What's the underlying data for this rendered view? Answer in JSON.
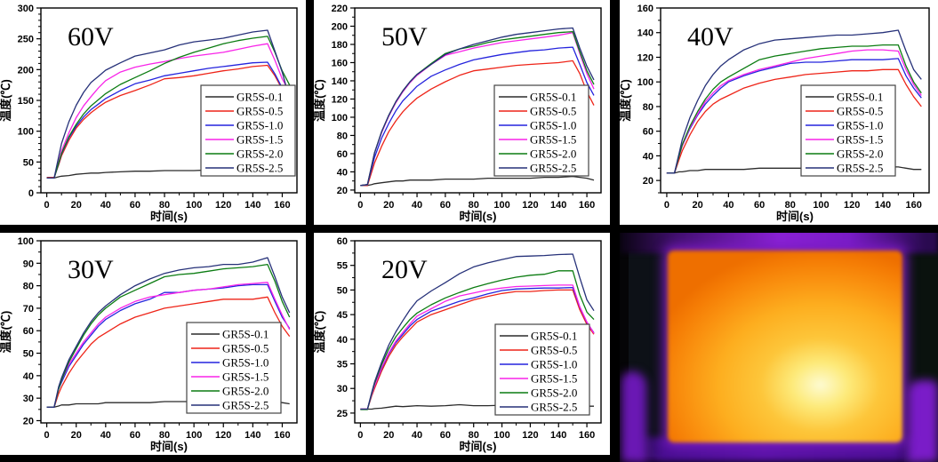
{
  "legend": {
    "labels": [
      "GR5S-0.1",
      "GR5S-0.5",
      "GR5S-1.0",
      "GR5S-1.5",
      "GR5S-2.0",
      "GR5S-2.5"
    ]
  },
  "chart_data": {
    "type": "line",
    "x_label": "时间(s)",
    "y_label": "温度(℃)",
    "legend_position": "right-middle",
    "grid": false,
    "x": [
      0,
      5,
      8,
      10,
      15,
      20,
      25,
      30,
      35,
      40,
      50,
      60,
      70,
      80,
      90,
      100,
      110,
      120,
      130,
      140,
      150,
      155,
      160,
      165
    ],
    "x_ticks": {
      "start": 0,
      "end": 160,
      "step": 20,
      "minor": 10
    },
    "xlim": [
      -4,
      170
    ],
    "series_names": [
      "GR5S-0.1",
      "GR5S-0.5",
      "GR5S-1.0",
      "GR5S-1.5",
      "GR5S-2.0",
      "GR5S-2.5"
    ],
    "series_colors": [
      "#2b2b2b",
      "#ee2418",
      "#2524dd",
      "#f824e8",
      "#0c7c12",
      "#263179"
    ],
    "charts": [
      {
        "title": "60V",
        "ylim": [
          0,
          300
        ],
        "y_ticks": {
          "start": 0,
          "end": 300,
          "step": 50,
          "minor": 10
        },
        "legend_right": 2,
        "legend_top": 96,
        "values": [
          [
            24,
            24,
            26,
            27,
            28,
            30,
            31,
            32,
            32,
            33,
            34,
            35,
            35,
            36,
            36,
            36,
            37,
            37,
            37,
            37,
            38,
            37,
            35,
            33
          ],
          [
            25,
            25,
            45,
            60,
            85,
            105,
            119,
            130,
            139,
            147,
            158,
            166,
            175,
            185,
            187,
            190,
            194,
            198,
            201,
            205,
            207,
            190,
            168,
            149
          ],
          [
            24,
            24,
            47,
            63,
            89,
            108,
            123,
            135,
            144,
            153,
            166,
            177,
            183,
            190,
            194,
            198,
            202,
            205,
            208,
            211,
            212,
            193,
            170,
            150
          ],
          [
            24,
            24,
            50,
            68,
            97,
            122,
            141,
            156,
            170,
            182,
            196,
            204,
            209,
            213,
            218,
            222,
            225,
            228,
            233,
            238,
            242,
            215,
            185,
            163
          ],
          [
            24,
            24,
            48,
            64,
            91,
            111,
            128,
            141,
            151,
            161,
            176,
            187,
            198,
            210,
            220,
            228,
            235,
            242,
            247,
            251,
            254,
            228,
            198,
            175
          ],
          [
            24,
            24,
            58,
            80,
            115,
            142,
            163,
            179,
            189,
            199,
            211,
            222,
            227,
            232,
            240,
            245,
            248,
            251,
            256,
            261,
            264,
            230,
            196,
            152
          ]
        ]
      },
      {
        "title": "50V",
        "ylim": [
          17,
          220
        ],
        "y_ticks": {
          "start": 20,
          "end": 220,
          "step": 20,
          "minor": 10
        },
        "legend_right": 14,
        "legend_top": 96,
        "values": [
          [
            25,
            25,
            26,
            27,
            28,
            29,
            30,
            30,
            31,
            31,
            31,
            32,
            32,
            32,
            33,
            33,
            33,
            33,
            34,
            34,
            35,
            34,
            33,
            31
          ],
          [
            25,
            25,
            40,
            50,
            68,
            84,
            96,
            106,
            114,
            121,
            131,
            139,
            146,
            151,
            153,
            155,
            157,
            158,
            159,
            160,
            162,
            148,
            128,
            113
          ],
          [
            25,
            26,
            44,
            56,
            77,
            93,
            107,
            118,
            126,
            134,
            145,
            152,
            158,
            163,
            166,
            169,
            171,
            173,
            174,
            176,
            177,
            158,
            138,
            124
          ],
          [
            25,
            26,
            47,
            61,
            83,
            101,
            116,
            128,
            138,
            146,
            158,
            168,
            172,
            176,
            179,
            182,
            184,
            186,
            188,
            190,
            193,
            170,
            148,
            131
          ],
          [
            25,
            26,
            47,
            61,
            84,
            102,
            117,
            129,
            139,
            147,
            159,
            170,
            175,
            178,
            182,
            185,
            187,
            189,
            191,
            193,
            194,
            172,
            151,
            136
          ],
          [
            25,
            26,
            47,
            61,
            84,
            102,
            117,
            129,
            139,
            147,
            158,
            169,
            175,
            180,
            184,
            188,
            191,
            193,
            195,
            197,
            198,
            176,
            156,
            141
          ]
        ]
      },
      {
        "title": "40V",
        "ylim": [
          10,
          160
        ],
        "y_ticks": {
          "start": 20,
          "end": 160,
          "step": 20,
          "minor": 10
        },
        "legend_right": 38,
        "legend_top": 96,
        "values": [
          [
            26,
            26,
            27,
            27,
            28,
            28,
            29,
            29,
            29,
            29,
            29,
            30,
            30,
            30,
            30,
            30,
            30,
            30,
            30,
            31,
            31,
            30,
            29,
            29
          ],
          [
            26,
            26,
            37,
            44,
            57,
            68,
            76,
            82,
            86,
            89,
            95,
            99,
            102,
            104,
            106,
            107,
            108,
            109,
            109,
            110,
            110,
            98,
            88,
            80
          ],
          [
            26,
            26,
            40,
            48,
            62,
            73,
            82,
            89,
            95,
            100,
            105,
            109,
            112,
            115,
            116,
            116,
            117,
            118,
            118,
            118,
            119,
            105,
            95,
            87
          ],
          [
            26,
            26,
            40,
            48,
            63,
            74,
            84,
            91,
            97,
            101,
            106,
            110,
            113,
            116,
            119,
            121,
            123,
            125,
            126,
            126,
            125,
            110,
            98,
            89
          ],
          [
            26,
            26,
            40,
            49,
            64,
            76,
            86,
            94,
            100,
            104,
            111,
            118,
            121,
            123,
            125,
            127,
            128,
            129,
            129,
            130,
            130,
            113,
            100,
            91
          ],
          [
            26,
            26,
            42,
            53,
            71,
            85,
            97,
            106,
            113,
            118,
            126,
            131,
            134,
            135,
            136,
            137,
            138,
            138,
            139,
            140,
            142,
            125,
            110,
            102
          ]
        ]
      },
      {
        "title": "30V",
        "ylim": [
          19,
          100
        ],
        "y_ticks": {
          "start": 20,
          "end": 100,
          "step": 10,
          "minor": 5
        },
        "legend_right": 18,
        "legend_top": 101,
        "values": [
          [
            26,
            26,
            26.5,
            27,
            27,
            27.5,
            27.5,
            27.5,
            27.5,
            28,
            28,
            28,
            28,
            28.5,
            28.5,
            28.5,
            28.5,
            28.5,
            28.5,
            28.5,
            29,
            28.5,
            28,
            27.5
          ],
          [
            26,
            26,
            32,
            35,
            41,
            46,
            50,
            54,
            57,
            59,
            63,
            66,
            68,
            70,
            71,
            72,
            73,
            74,
            74,
            74,
            75,
            68,
            62,
            57.5
          ],
          [
            26,
            26,
            34,
            37,
            44,
            49,
            54,
            58,
            62,
            65,
            69,
            72,
            74,
            77,
            77,
            78,
            78.5,
            79,
            80,
            80.5,
            80.5,
            73,
            66,
            61
          ],
          [
            26,
            26,
            34,
            38,
            45,
            50,
            55,
            59,
            63,
            66,
            70,
            73,
            75,
            76,
            77,
            78,
            78.5,
            79.5,
            80.5,
            81,
            81.5,
            74,
            67,
            60.5
          ],
          [
            26,
            26,
            34,
            38,
            46,
            52,
            58,
            63,
            67,
            70,
            75,
            78,
            81,
            84,
            85,
            85.5,
            86.5,
            87.5,
            88,
            88.5,
            89.5,
            82,
            73,
            66
          ],
          [
            26,
            26,
            35,
            39,
            47,
            53,
            59,
            64,
            68,
            71,
            76,
            80,
            83,
            85.5,
            87,
            88,
            88.5,
            89.5,
            89.5,
            90.5,
            92.5,
            84,
            75,
            68
          ]
        ]
      },
      {
        "title": "20V",
        "ylim": [
          23,
          60
        ],
        "y_ticks": {
          "start": 25,
          "end": 60,
          "step": 5,
          "minor": 2.5
        },
        "legend_right": 13,
        "legend_top": 103,
        "values": [
          [
            25.8,
            25.8,
            25.8,
            25.9,
            26,
            26.2,
            26.4,
            26.3,
            26.4,
            26.5,
            26.4,
            26.5,
            26.7,
            26.5,
            26.5,
            26.6,
            26.7,
            26.5,
            26.5,
            26.7,
            26.5,
            26.5,
            26.4,
            26.4
          ],
          [
            25.8,
            25.8,
            28.5,
            30,
            33.5,
            36.5,
            38.8,
            40.5,
            42,
            43.5,
            45,
            46,
            47,
            48,
            48.7,
            49.3,
            49.7,
            49.7,
            49.9,
            50,
            50,
            46,
            43,
            41
          ],
          [
            25.8,
            25.8,
            28.8,
            30.5,
            34,
            37,
            39.3,
            41,
            42.7,
            44,
            45.7,
            46.7,
            47.7,
            48.4,
            49.2,
            49.9,
            50.2,
            50.3,
            50.4,
            50.4,
            50.5,
            46.5,
            43.4,
            41.3
          ],
          [
            25.8,
            25.8,
            28.8,
            30.5,
            34.2,
            37.2,
            39.6,
            41.4,
            43.1,
            44.7,
            46.2,
            47.7,
            48.8,
            49.4,
            50,
            50.4,
            50.7,
            50.8,
            50.9,
            51,
            51,
            46.6,
            43.5,
            41.2
          ],
          [
            25.7,
            25.7,
            29,
            31,
            34.8,
            38,
            40.5,
            42.3,
            44,
            45.3,
            47,
            48.4,
            49.5,
            50.5,
            51.3,
            52,
            52.6,
            53,
            53.2,
            53.9,
            53.9,
            49,
            45.5,
            44
          ],
          [
            25.8,
            25.8,
            29.2,
            31.3,
            35.3,
            38.8,
            41.5,
            43.8,
            46,
            47.8,
            49.8,
            51.5,
            53.3,
            54.7,
            55.5,
            56.2,
            56.8,
            56.9,
            57,
            57.2,
            57.3,
            52.5,
            48,
            45.8
          ]
        ]
      }
    ]
  },
  "thermal": {
    "palette": {
      "dark_bg": "#050507",
      "hot_center": "#fdfbd2",
      "hot_mid": "#fdc63a",
      "hot_edge": "#f57d05",
      "glow_purple": "#7a1cc0",
      "band_purple": "#8b21d6"
    }
  },
  "colors": {
    "page_bg": "#000000",
    "panel_bg": "#ffffff",
    "axis": "#000000"
  }
}
